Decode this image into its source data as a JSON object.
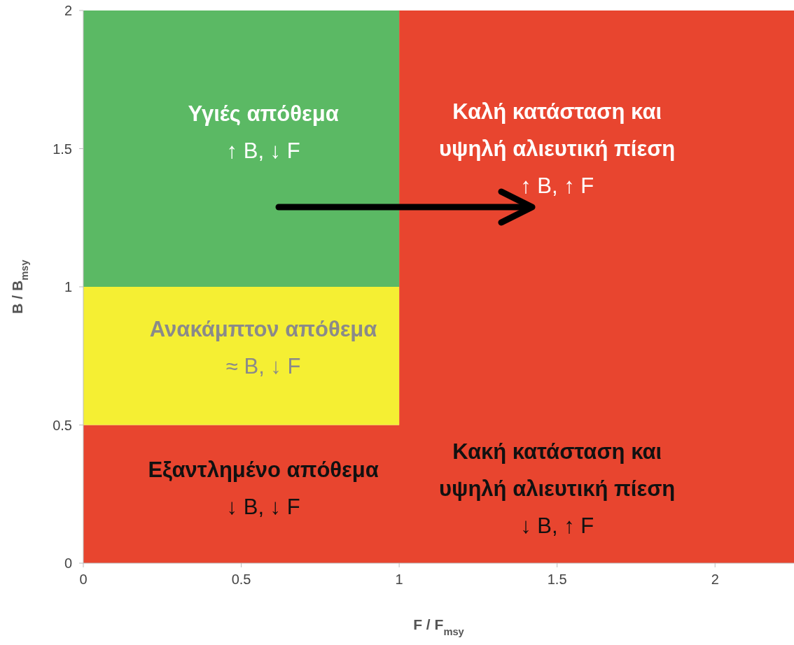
{
  "chart_data": {
    "type": "area",
    "stacked": true,
    "x": [
      0,
      1,
      1,
      2.25
    ],
    "series": [
      {
        "color": "#e8452f",
        "values": [
          0.5,
          0.5,
          2,
          2
        ]
      },
      {
        "color": "#f5ef33",
        "values": [
          0.5,
          0.5,
          0,
          0
        ]
      },
      {
        "color": "#5bb964",
        "values": [
          1,
          1,
          0,
          0
        ]
      }
    ],
    "xlim": [
      0,
      2.25
    ],
    "xticks": [
      0,
      0.5,
      1,
      1.5,
      2
    ],
    "ylim": [
      0,
      2
    ],
    "yticks": [
      0,
      0.5,
      1,
      1.5,
      2
    ],
    "xlabel": "F / F$_{msy}$",
    "ylabel": "B / B$_{msy}$",
    "grid": false,
    "legend": false,
    "annotations": [
      "Υγιές απόθεμα\n↑ B, ↓ F",
      "Καλή κατάσταση και\nυψηλή αλιευτική πίεση\n↑ B, ↑ F",
      "Ανακάμπτον απόθεμα\n≈ B, ↓ F",
      "Εξαντλημένο απόθεμα\n↓ B, ↓ F",
      "Κακή κατάσταση και\nυψηλή αλιευτική πίεση\n↓ B, ↑ F"
    ]
  }
}
